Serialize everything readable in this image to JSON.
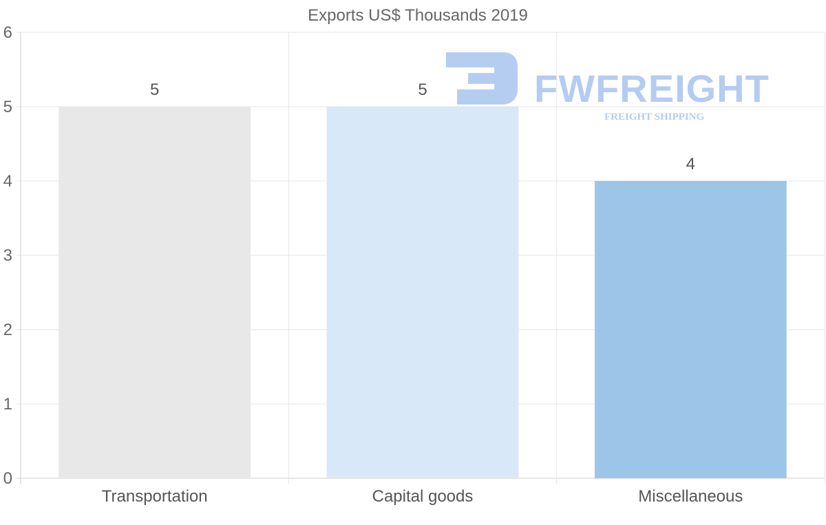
{
  "chart_data": {
    "type": "bar",
    "title": "Exports US$ Thousands 2019",
    "categories": [
      "Transportation",
      "Capital goods",
      "Miscellaneous"
    ],
    "values": [
      5,
      5,
      4
    ],
    "data_labels": [
      "5",
      "5",
      "4"
    ],
    "bar_colors": [
      "#e8e8e8",
      "#d8e8f8",
      "#9dc5e8"
    ],
    "ylim": [
      0,
      6
    ],
    "yticks": [
      "0",
      "1",
      "2",
      "3",
      "4",
      "5",
      "6"
    ],
    "xlabel": "",
    "ylabel": "",
    "grid": true
  },
  "watermark": {
    "brand": "FWFREIGHT",
    "tagline": "FREIGHT SHIPPING",
    "color": "#a9c4f0"
  },
  "colors": {
    "grid": "#e6e6e6",
    "axis": "#cccccc",
    "text": "#666666"
  }
}
